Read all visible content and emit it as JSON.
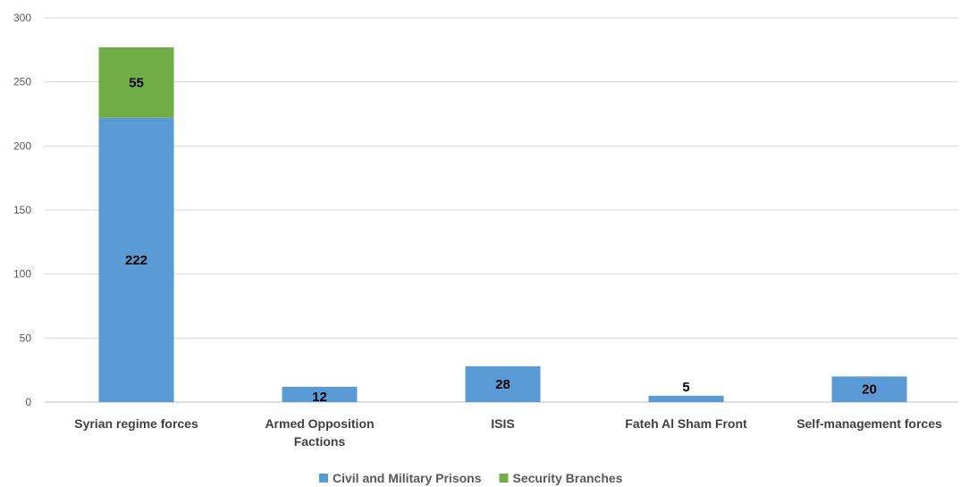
{
  "chart_data": {
    "type": "bar",
    "stacked": true,
    "categories": [
      [
        "Syrian regime forces"
      ],
      [
        "Armed Opposition",
        "Factions"
      ],
      [
        "ISIS"
      ],
      [
        "Fateh Al Sham Front"
      ],
      [
        "Self-management forces"
      ]
    ],
    "series": [
      {
        "name": "Civil and Military Prisons",
        "color": "#5B9BD5",
        "values": [
          222,
          12,
          28,
          5,
          20
        ]
      },
      {
        "name": "Security Branches",
        "color": "#70AD47",
        "values": [
          55,
          0,
          0,
          0,
          0
        ]
      }
    ],
    "ylim": [
      0,
      300
    ],
    "yticks": [
      0,
      50,
      100,
      150,
      200,
      250,
      300
    ],
    "grid": true,
    "legend": "bottom"
  }
}
